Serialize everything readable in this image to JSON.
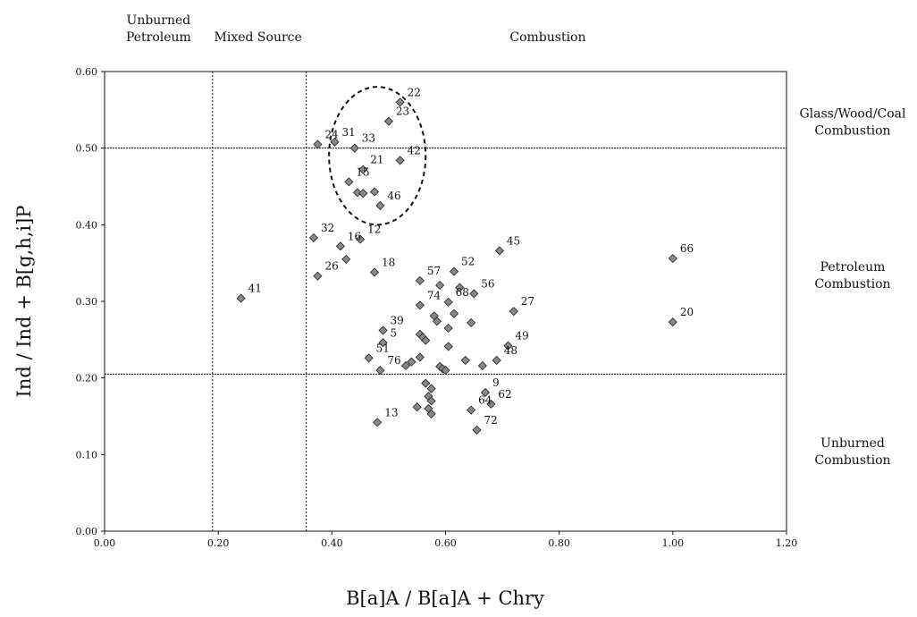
{
  "chart_data": {
    "type": "scatter",
    "title": "",
    "xlabel": "B[a]A / B[a]A + Chry",
    "ylabel": "Ind / Ind + B[g,h,i]P",
    "xlim": [
      0,
      1.2
    ],
    "ylim": [
      0,
      0.6
    ],
    "x_ticks": [
      "0.00",
      "0.20",
      "0.40",
      "0.60",
      "0.80",
      "1.00",
      "1.20"
    ],
    "y_ticks": [
      "0.00",
      "0.10",
      "0.20",
      "0.30",
      "0.40",
      "0.50",
      "0.60"
    ],
    "grid": false,
    "reference_lines": {
      "vertical_x": [
        0.19,
        0.355
      ],
      "horizontal_y": [
        0.5,
        0.205
      ]
    },
    "top_regions": [
      {
        "line1": "Unburned",
        "line2": "Petroleum",
        "x": 0.095
      },
      {
        "line1": "Mixed Source",
        "line2": "",
        "x": 0.27
      },
      {
        "line1": "Combustion",
        "line2": "",
        "x": 0.78
      }
    ],
    "right_regions": [
      {
        "line1": "Glass/Wood/Coal",
        "line2": "Combustion",
        "y": 0.535
      },
      {
        "line1": "Petroleum",
        "line2": "Combustion",
        "y": 0.335
      },
      {
        "line1": "Unburned",
        "line2": "Combustion",
        "y": 0.105
      }
    ],
    "ellipse": {
      "cx": 0.48,
      "cy": 0.49,
      "rx": 0.085,
      "ry": 0.09
    },
    "marker_color": "#888888",
    "points": [
      {
        "x": 0.52,
        "y": 0.56,
        "label": "22"
      },
      {
        "x": 0.5,
        "y": 0.535,
        "label": "23"
      },
      {
        "x": 0.405,
        "y": 0.508,
        "label": "31"
      },
      {
        "x": 0.375,
        "y": 0.505,
        "label": "24"
      },
      {
        "x": 0.44,
        "y": 0.5,
        "label": "33"
      },
      {
        "x": 0.52,
        "y": 0.484,
        "label": "42"
      },
      {
        "x": 0.455,
        "y": 0.472,
        "label": "21"
      },
      {
        "x": 0.43,
        "y": 0.456,
        "label": "15"
      },
      {
        "x": 0.445,
        "y": 0.442,
        "label": ""
      },
      {
        "x": 0.455,
        "y": 0.441,
        "label": ""
      },
      {
        "x": 0.475,
        "y": 0.443,
        "label": ""
      },
      {
        "x": 0.485,
        "y": 0.425,
        "label": "46"
      },
      {
        "x": 0.368,
        "y": 0.383,
        "label": "32"
      },
      {
        "x": 0.415,
        "y": 0.372,
        "label": "16"
      },
      {
        "x": 0.45,
        "y": 0.381,
        "label": "12"
      },
      {
        "x": 0.425,
        "y": 0.355,
        "label": ""
      },
      {
        "x": 0.375,
        "y": 0.333,
        "label": "26"
      },
      {
        "x": 0.475,
        "y": 0.338,
        "label": "18"
      },
      {
        "x": 0.24,
        "y": 0.304,
        "label": "41"
      },
      {
        "x": 0.555,
        "y": 0.327,
        "label": "57"
      },
      {
        "x": 0.615,
        "y": 0.339,
        "label": "52"
      },
      {
        "x": 0.695,
        "y": 0.366,
        "label": "45"
      },
      {
        "x": 1.0,
        "y": 0.356,
        "label": "66"
      },
      {
        "x": 0.59,
        "y": 0.321,
        "label": ""
      },
      {
        "x": 0.625,
        "y": 0.318,
        "label": ""
      },
      {
        "x": 0.65,
        "y": 0.31,
        "label": "56"
      },
      {
        "x": 0.555,
        "y": 0.295,
        "label": "74"
      },
      {
        "x": 0.605,
        "y": 0.299,
        "label": "68"
      },
      {
        "x": 0.72,
        "y": 0.287,
        "label": "27"
      },
      {
        "x": 1.0,
        "y": 0.273,
        "label": "20"
      },
      {
        "x": 0.58,
        "y": 0.281,
        "label": ""
      },
      {
        "x": 0.585,
        "y": 0.274,
        "label": ""
      },
      {
        "x": 0.615,
        "y": 0.284,
        "label": ""
      },
      {
        "x": 0.645,
        "y": 0.272,
        "label": ""
      },
      {
        "x": 0.49,
        "y": 0.262,
        "label": "39"
      },
      {
        "x": 0.605,
        "y": 0.265,
        "label": ""
      },
      {
        "x": 0.555,
        "y": 0.257,
        "label": ""
      },
      {
        "x": 0.56,
        "y": 0.253,
        "label": ""
      },
      {
        "x": 0.565,
        "y": 0.249,
        "label": ""
      },
      {
        "x": 0.49,
        "y": 0.246,
        "label": "5"
      },
      {
        "x": 0.605,
        "y": 0.241,
        "label": ""
      },
      {
        "x": 0.71,
        "y": 0.242,
        "label": "49"
      },
      {
        "x": 0.465,
        "y": 0.226,
        "label": "51"
      },
      {
        "x": 0.555,
        "y": 0.227,
        "label": ""
      },
      {
        "x": 0.54,
        "y": 0.221,
        "label": ""
      },
      {
        "x": 0.53,
        "y": 0.216,
        "label": ""
      },
      {
        "x": 0.635,
        "y": 0.223,
        "label": ""
      },
      {
        "x": 0.69,
        "y": 0.223,
        "label": "48"
      },
      {
        "x": 0.665,
        "y": 0.216,
        "label": ""
      },
      {
        "x": 0.59,
        "y": 0.215,
        "label": ""
      },
      {
        "x": 0.595,
        "y": 0.212,
        "label": ""
      },
      {
        "x": 0.6,
        "y": 0.21,
        "label": ""
      },
      {
        "x": 0.485,
        "y": 0.21,
        "label": "76"
      },
      {
        "x": 0.565,
        "y": 0.193,
        "label": ""
      },
      {
        "x": 0.575,
        "y": 0.186,
        "label": ""
      },
      {
        "x": 0.67,
        "y": 0.181,
        "label": "9"
      },
      {
        "x": 0.57,
        "y": 0.176,
        "label": ""
      },
      {
        "x": 0.575,
        "y": 0.17,
        "label": ""
      },
      {
        "x": 0.68,
        "y": 0.166,
        "label": "62"
      },
      {
        "x": 0.55,
        "y": 0.162,
        "label": ""
      },
      {
        "x": 0.57,
        "y": 0.16,
        "label": ""
      },
      {
        "x": 0.645,
        "y": 0.158,
        "label": "64"
      },
      {
        "x": 0.575,
        "y": 0.153,
        "label": ""
      },
      {
        "x": 0.48,
        "y": 0.142,
        "label": "13"
      },
      {
        "x": 0.655,
        "y": 0.132,
        "label": "72"
      }
    ]
  }
}
